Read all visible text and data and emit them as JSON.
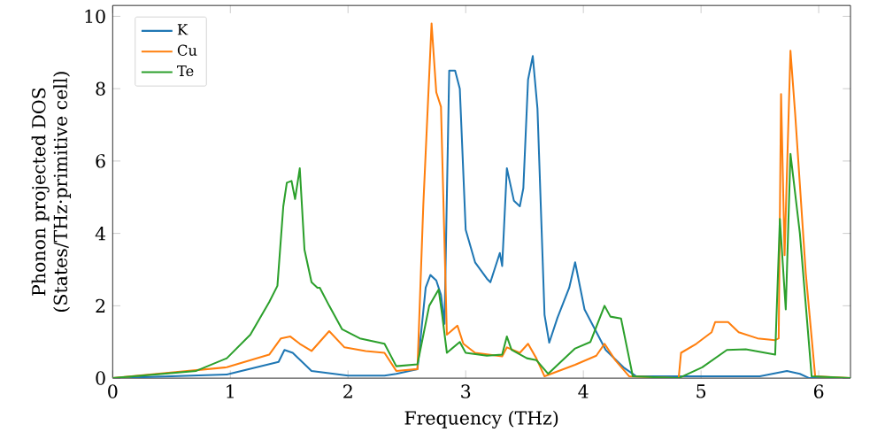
{
  "chart_data": {
    "type": "line",
    "xlabel": "Frequency (THz)",
    "ylabel": "Phonon projected DOS\n(States/THz·primitive cell)",
    "xlim": [
      0,
      6.27
    ],
    "ylim": [
      0,
      10.3
    ],
    "xticks": [
      0,
      1,
      2,
      3,
      4,
      5,
      6
    ],
    "yticks": [
      0,
      2,
      4,
      6,
      8,
      10
    ],
    "legend": "top left",
    "series": [
      {
        "name": "K",
        "color": "#1f77b4",
        "x": [
          0,
          0.97,
          1.41,
          1.46,
          1.53,
          1.61,
          1.69,
          2.0,
          2.31,
          2.41,
          2.59,
          2.66,
          2.7,
          2.75,
          2.79,
          2.82,
          2.86,
          2.91,
          2.95,
          3.0,
          3.08,
          3.18,
          3.21,
          3.29,
          3.31,
          3.35,
          3.41,
          3.46,
          3.49,
          3.53,
          3.57,
          3.61,
          3.67,
          3.71,
          3.78,
          3.88,
          3.93,
          4.01,
          4.19,
          4.34,
          4.45,
          5.0,
          5.5,
          5.73,
          5.84,
          5.92,
          6.27
        ],
        "values": [
          0,
          0.1,
          0.45,
          0.78,
          0.7,
          0.45,
          0.2,
          0.07,
          0.07,
          0.12,
          0.25,
          2.5,
          2.85,
          2.7,
          2.3,
          1.5,
          8.5,
          8.5,
          8.0,
          4.1,
          3.2,
          2.75,
          2.65,
          3.46,
          3.1,
          5.8,
          4.9,
          4.75,
          5.25,
          8.25,
          8.9,
          7.45,
          1.75,
          0.98,
          1.67,
          2.5,
          3.2,
          1.9,
          0.78,
          0.3,
          0.05,
          0.05,
          0.05,
          0.2,
          0.12,
          0,
          0
        ]
      },
      {
        "name": "Cu",
        "color": "#ff7f0e",
        "x": [
          0,
          0.97,
          1.33,
          1.43,
          1.51,
          1.59,
          1.69,
          1.84,
          1.97,
          2.15,
          2.31,
          2.41,
          2.59,
          2.64,
          2.71,
          2.75,
          2.79,
          2.84,
          2.93,
          2.98,
          3.08,
          3.31,
          3.35,
          3.46,
          3.53,
          3.6,
          3.67,
          3.93,
          4.11,
          4.18,
          4.27,
          4.39,
          4.81,
          4.83,
          4.96,
          5.09,
          5.12,
          5.23,
          5.32,
          5.48,
          5.63,
          5.66,
          5.68,
          5.71,
          5.76,
          5.8,
          5.89,
          5.97,
          6.27
        ],
        "values": [
          0,
          0.3,
          0.65,
          1.1,
          1.15,
          0.95,
          0.75,
          1.3,
          0.85,
          0.75,
          0.7,
          0.2,
          0.25,
          4.8,
          9.8,
          7.9,
          7.5,
          1.2,
          1.45,
          0.95,
          0.7,
          0.6,
          0.85,
          0.7,
          0.95,
          0.55,
          0.05,
          0.37,
          0.62,
          0.95,
          0.5,
          0.05,
          0,
          0.7,
          0.95,
          1.27,
          1.55,
          1.55,
          1.27,
          1.1,
          1.05,
          1.1,
          7.85,
          3.4,
          9.05,
          7.3,
          2.9,
          0.05,
          0
        ]
      },
      {
        "name": "Te",
        "color": "#2ca02c",
        "x": [
          0,
          0.71,
          0.97,
          1.17,
          1.33,
          1.4,
          1.45,
          1.48,
          1.52,
          1.55,
          1.59,
          1.63,
          1.69,
          1.74,
          1.76,
          1.84,
          1.95,
          2.1,
          2.31,
          2.41,
          2.59,
          2.69,
          2.77,
          2.8,
          2.84,
          2.95,
          3.0,
          3.18,
          3.31,
          3.35,
          3.39,
          3.52,
          3.6,
          3.7,
          3.93,
          4.06,
          4.18,
          4.23,
          4.32,
          4.42,
          4.81,
          5.01,
          5.22,
          5.38,
          5.63,
          5.67,
          5.72,
          5.76,
          5.84,
          5.94,
          6.27
        ],
        "values": [
          0,
          0.2,
          0.55,
          1.2,
          2.1,
          2.55,
          4.75,
          5.4,
          5.45,
          4.95,
          5.8,
          3.55,
          2.65,
          2.5,
          2.5,
          2.0,
          1.35,
          1.1,
          0.95,
          0.33,
          0.38,
          2.0,
          2.45,
          1.75,
          0.7,
          1.0,
          0.7,
          0.62,
          0.65,
          1.15,
          0.78,
          0.55,
          0.5,
          0.12,
          0.82,
          1.0,
          2.0,
          1.7,
          1.65,
          0.05,
          0,
          0.3,
          0.78,
          0.8,
          0.65,
          4.4,
          1.9,
          6.2,
          4.0,
          0.05,
          0
        ]
      }
    ]
  }
}
